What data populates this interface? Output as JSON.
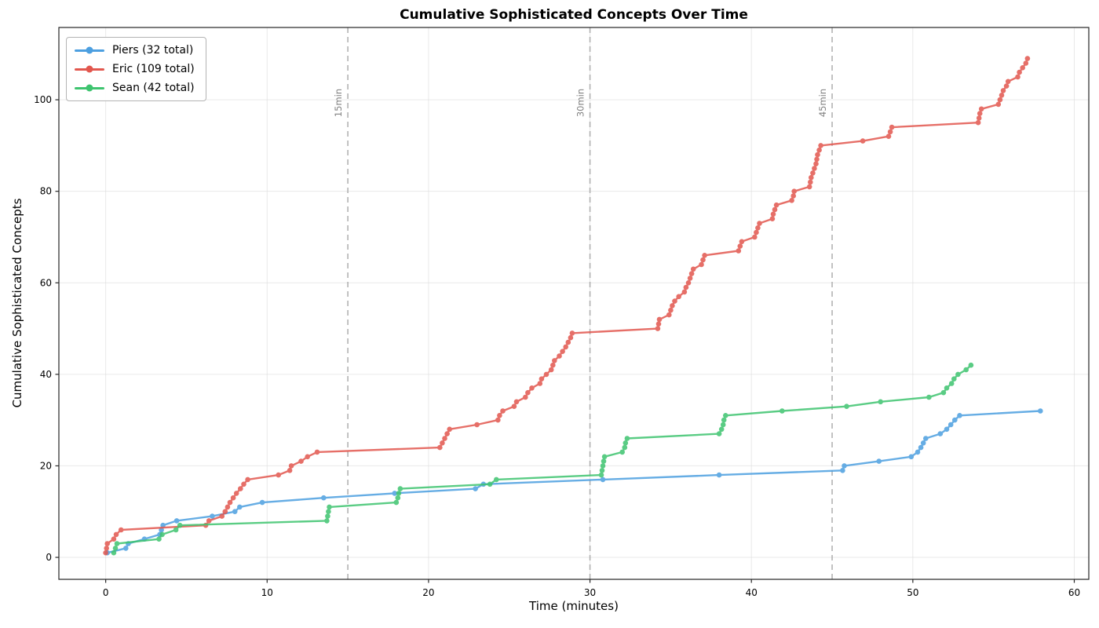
{
  "page": {
    "title": "Cumulative Sophisticated Concepts Over Time"
  },
  "chart_data": {
    "type": "line",
    "title": "Cumulative Sophisticated Concepts Over Time",
    "xlabel": "Time (minutes)",
    "ylabel": "Cumulative Sophisticated Concepts",
    "xlim": [
      -2.9,
      60.9
    ],
    "ylim": [
      -4.8,
      115.8
    ],
    "xticks": [
      0,
      10,
      20,
      30,
      40,
      50,
      60
    ],
    "yticks": [
      0,
      20,
      40,
      60,
      80,
      100
    ],
    "grid": true,
    "legend_position": "upper-left",
    "annotations": [
      {
        "x": 15,
        "label": "15min"
      },
      {
        "x": 30,
        "label": "30min"
      },
      {
        "x": 45,
        "label": "45min"
      }
    ],
    "series": [
      {
        "name": "Piers (32 total)",
        "color": "#4C9FE0",
        "points": [
          [
            0.1,
            1
          ],
          [
            1.25,
            2
          ],
          [
            1.4,
            3
          ],
          [
            2.4,
            4
          ],
          [
            3.35,
            5
          ],
          [
            3.45,
            6
          ],
          [
            3.55,
            7
          ],
          [
            4.4,
            8
          ],
          [
            6.6,
            9
          ],
          [
            8.0,
            10
          ],
          [
            8.3,
            11
          ],
          [
            9.7,
            12
          ],
          [
            13.5,
            13
          ],
          [
            17.9,
            14
          ],
          [
            22.9,
            15
          ],
          [
            23.4,
            16
          ],
          [
            30.8,
            17
          ],
          [
            38.0,
            18
          ],
          [
            45.65,
            19
          ],
          [
            45.75,
            20
          ],
          [
            47.9,
            21
          ],
          [
            49.9,
            22
          ],
          [
            50.3,
            23
          ],
          [
            50.5,
            24
          ],
          [
            50.65,
            25
          ],
          [
            50.8,
            26
          ],
          [
            51.7,
            27
          ],
          [
            52.1,
            28
          ],
          [
            52.35,
            29
          ],
          [
            52.6,
            30
          ],
          [
            52.9,
            31
          ],
          [
            57.9,
            32
          ]
        ]
      },
      {
        "name": "Eric (109 total)",
        "color": "#E2574E",
        "points": [
          [
            0.0,
            1
          ],
          [
            0.05,
            2
          ],
          [
            0.1,
            3
          ],
          [
            0.5,
            4
          ],
          [
            0.65,
            5
          ],
          [
            0.95,
            6
          ],
          [
            6.2,
            7
          ],
          [
            6.4,
            8
          ],
          [
            7.2,
            9
          ],
          [
            7.4,
            10
          ],
          [
            7.55,
            11
          ],
          [
            7.7,
            12
          ],
          [
            7.9,
            13
          ],
          [
            8.1,
            14
          ],
          [
            8.35,
            15
          ],
          [
            8.55,
            16
          ],
          [
            8.8,
            17
          ],
          [
            10.7,
            18
          ],
          [
            11.4,
            19
          ],
          [
            11.5,
            20
          ],
          [
            12.1,
            21
          ],
          [
            12.5,
            22
          ],
          [
            13.1,
            23
          ],
          [
            20.7,
            24
          ],
          [
            20.85,
            25
          ],
          [
            21.0,
            26
          ],
          [
            21.15,
            27
          ],
          [
            21.3,
            28
          ],
          [
            23.0,
            29
          ],
          [
            24.3,
            30
          ],
          [
            24.4,
            31
          ],
          [
            24.6,
            32
          ],
          [
            25.3,
            33
          ],
          [
            25.45,
            34
          ],
          [
            26.0,
            35
          ],
          [
            26.15,
            36
          ],
          [
            26.4,
            37
          ],
          [
            26.9,
            38
          ],
          [
            27.0,
            39
          ],
          [
            27.3,
            40
          ],
          [
            27.6,
            41
          ],
          [
            27.7,
            42
          ],
          [
            27.8,
            43
          ],
          [
            28.1,
            44
          ],
          [
            28.3,
            45
          ],
          [
            28.5,
            46
          ],
          [
            28.65,
            47
          ],
          [
            28.8,
            48
          ],
          [
            28.9,
            49
          ],
          [
            34.2,
            50
          ],
          [
            34.25,
            51
          ],
          [
            34.3,
            52
          ],
          [
            34.9,
            53
          ],
          [
            35.0,
            54
          ],
          [
            35.1,
            55
          ],
          [
            35.25,
            56
          ],
          [
            35.5,
            57
          ],
          [
            35.85,
            58
          ],
          [
            35.95,
            59
          ],
          [
            36.1,
            60
          ],
          [
            36.2,
            61
          ],
          [
            36.3,
            62
          ],
          [
            36.4,
            63
          ],
          [
            36.9,
            64
          ],
          [
            37.0,
            65
          ],
          [
            37.1,
            66
          ],
          [
            39.2,
            67
          ],
          [
            39.3,
            68
          ],
          [
            39.4,
            69
          ],
          [
            40.2,
            70
          ],
          [
            40.3,
            71
          ],
          [
            40.4,
            72
          ],
          [
            40.5,
            73
          ],
          [
            41.3,
            74
          ],
          [
            41.35,
            75
          ],
          [
            41.45,
            76
          ],
          [
            41.55,
            77
          ],
          [
            42.5,
            78
          ],
          [
            42.6,
            79
          ],
          [
            42.65,
            80
          ],
          [
            43.6,
            81
          ],
          [
            43.65,
            82
          ],
          [
            43.7,
            83
          ],
          [
            43.8,
            84
          ],
          [
            43.9,
            85
          ],
          [
            44.0,
            86
          ],
          [
            44.05,
            87
          ],
          [
            44.1,
            88
          ],
          [
            44.2,
            89
          ],
          [
            44.3,
            90
          ],
          [
            46.9,
            91
          ],
          [
            48.5,
            92
          ],
          [
            48.6,
            93
          ],
          [
            48.7,
            94
          ],
          [
            54.05,
            95
          ],
          [
            54.1,
            96
          ],
          [
            54.15,
            97
          ],
          [
            54.25,
            98
          ],
          [
            55.3,
            99
          ],
          [
            55.4,
            100
          ],
          [
            55.5,
            101
          ],
          [
            55.6,
            102
          ],
          [
            55.8,
            103
          ],
          [
            55.9,
            104
          ],
          [
            56.5,
            105
          ],
          [
            56.6,
            106
          ],
          [
            56.8,
            107
          ],
          [
            57.0,
            108
          ],
          [
            57.1,
            109
          ]
        ]
      },
      {
        "name": "Sean (42 total)",
        "color": "#3EC46F",
        "points": [
          [
            0.5,
            1
          ],
          [
            0.6,
            2
          ],
          [
            0.7,
            3
          ],
          [
            3.3,
            4
          ],
          [
            3.5,
            5
          ],
          [
            4.35,
            6
          ],
          [
            4.6,
            7
          ],
          [
            13.7,
            8
          ],
          [
            13.75,
            9
          ],
          [
            13.8,
            10
          ],
          [
            13.85,
            11
          ],
          [
            18.0,
            12
          ],
          [
            18.1,
            13
          ],
          [
            18.15,
            14
          ],
          [
            18.25,
            15
          ],
          [
            23.8,
            16
          ],
          [
            24.2,
            17
          ],
          [
            30.7,
            18
          ],
          [
            30.75,
            19
          ],
          [
            30.8,
            20
          ],
          [
            30.85,
            21
          ],
          [
            30.9,
            22
          ],
          [
            32.0,
            23
          ],
          [
            32.15,
            24
          ],
          [
            32.2,
            25
          ],
          [
            32.3,
            26
          ],
          [
            38.0,
            27
          ],
          [
            38.15,
            28
          ],
          [
            38.25,
            29
          ],
          [
            38.3,
            30
          ],
          [
            38.4,
            31
          ],
          [
            41.9,
            32
          ],
          [
            45.9,
            33
          ],
          [
            48.0,
            34
          ],
          [
            51.0,
            35
          ],
          [
            51.9,
            36
          ],
          [
            52.1,
            37
          ],
          [
            52.4,
            38
          ],
          [
            52.55,
            39
          ],
          [
            52.8,
            40
          ],
          [
            53.3,
            41
          ],
          [
            53.6,
            42
          ]
        ]
      }
    ]
  },
  "style": {
    "grid_color": "#DBDBDB",
    "vline_color": "#A6A6A6",
    "vline_label_color": "#7F7F7F",
    "spine_color": "#262626",
    "tick_label_color": "#000000"
  }
}
